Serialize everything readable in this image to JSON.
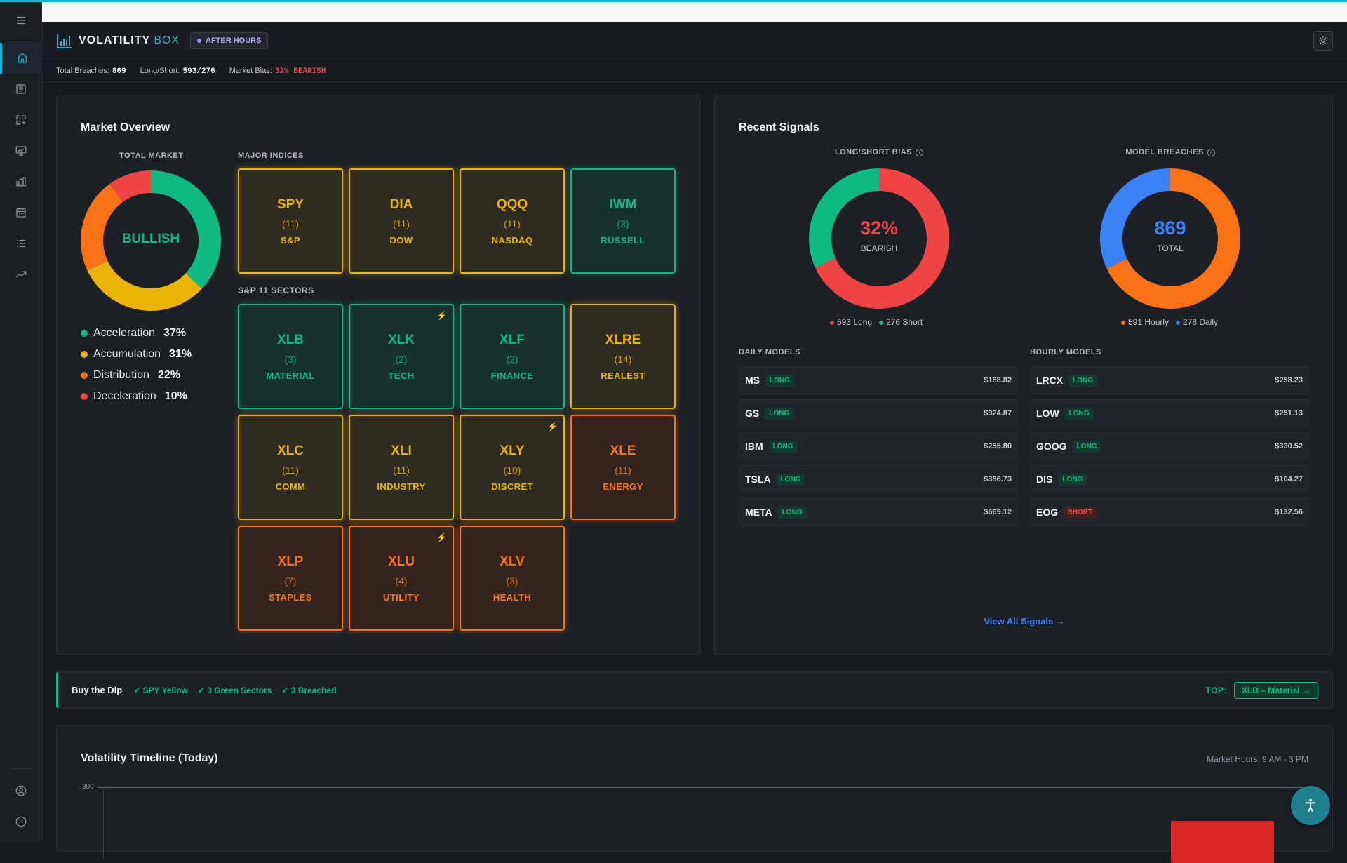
{
  "app": {
    "logo_main": "VOLATILITY",
    "logo_accent": "BOX",
    "status_badge": "AFTER HOURS"
  },
  "stats": {
    "total_breaches_label": "Total Breaches:",
    "total_breaches": "869",
    "long_short_label": "Long/Short:",
    "long_short": "593/276",
    "market_bias_label": "Market Bias:",
    "market_bias": "32% BEARISH"
  },
  "market_overview": {
    "title": "Market Overview",
    "total_market_label": "TOTAL MARKET",
    "total_market_state": "BULLISH",
    "phases": [
      {
        "label": "Acceleration",
        "pct": "37%",
        "value": 37,
        "color": "#10b981"
      },
      {
        "label": "Accumulation",
        "pct": "31%",
        "value": 31,
        "color": "#eab308"
      },
      {
        "label": "Distribution",
        "pct": "22%",
        "value": 22,
        "color": "#f97316"
      },
      {
        "label": "Deceleration",
        "pct": "10%",
        "value": 10,
        "color": "#ef4444"
      }
    ],
    "major_indices_label": "MAJOR INDICES",
    "major_indices": [
      {
        "symbol": "SPY",
        "count": "(11)",
        "name": "S&P",
        "status": "yellow"
      },
      {
        "symbol": "DIA",
        "count": "(11)",
        "name": "DOW",
        "status": "yellow"
      },
      {
        "symbol": "QQQ",
        "count": "(11)",
        "name": "NASDAQ",
        "status": "yellow"
      },
      {
        "symbol": "IWM",
        "count": "(3)",
        "name": "RUSSELL",
        "status": "green"
      }
    ],
    "sectors_label": "S&P 11 SECTORS",
    "sectors": [
      {
        "symbol": "XLB",
        "count": "(3)",
        "name": "MATERIAL",
        "status": "green",
        "bolt": false
      },
      {
        "symbol": "XLK",
        "count": "(2)",
        "name": "TECH",
        "status": "green",
        "bolt": true
      },
      {
        "symbol": "XLF",
        "count": "(2)",
        "name": "FINANCE",
        "status": "green",
        "bolt": false
      },
      {
        "symbol": "XLRE",
        "count": "(14)",
        "name": "REALEST",
        "status": "yellow",
        "bolt": false
      },
      {
        "symbol": "XLC",
        "count": "(11)",
        "name": "COMM",
        "status": "yellow",
        "bolt": false
      },
      {
        "symbol": "XLI",
        "count": "(11)",
        "name": "INDUSTRY",
        "status": "yellow",
        "bolt": false
      },
      {
        "symbol": "XLY",
        "count": "(10)",
        "name": "DISCRET",
        "status": "yellow",
        "bolt": true
      },
      {
        "symbol": "XLE",
        "count": "(11)",
        "name": "ENERGY",
        "status": "orange",
        "bolt": false
      },
      {
        "symbol": "XLP",
        "count": "(7)",
        "name": "STAPLES",
        "status": "orange",
        "bolt": false
      },
      {
        "symbol": "XLU",
        "count": "(4)",
        "name": "UTILITY",
        "status": "orange",
        "bolt": true
      },
      {
        "symbol": "XLV",
        "count": "(3)",
        "name": "HEALTH",
        "status": "orange",
        "bolt": false
      }
    ]
  },
  "recent_signals": {
    "title": "Recent Signals",
    "bias": {
      "label": "LONG/SHORT BIAS",
      "pct": "32%",
      "state": "BEARISH",
      "long_label": "593 Long",
      "short_label": "276 Short",
      "long": 593,
      "short": 276
    },
    "breaches": {
      "label": "MODEL BREACHES",
      "total": "869",
      "total_label": "TOTAL",
      "hourly_label": "591 Hourly",
      "daily_label": "278 Daily",
      "hourly": 591,
      "daily": 278
    },
    "daily_models_label": "DAILY MODELS",
    "hourly_models_label": "HOURLY MODELS",
    "daily_models": [
      {
        "ticker": "MS",
        "side": "LONG",
        "price": "$188.82"
      },
      {
        "ticker": "GS",
        "side": "LONG",
        "price": "$924.87"
      },
      {
        "ticker": "IBM",
        "side": "LONG",
        "price": "$255.80"
      },
      {
        "ticker": "TSLA",
        "side": "LONG",
        "price": "$386.73"
      },
      {
        "ticker": "META",
        "side": "LONG",
        "price": "$669.12"
      }
    ],
    "hourly_models": [
      {
        "ticker": "LRCX",
        "side": "LONG",
        "price": "$258.23"
      },
      {
        "ticker": "LOW",
        "side": "LONG",
        "price": "$251.13"
      },
      {
        "ticker": "GOOG",
        "side": "LONG",
        "price": "$330.52"
      },
      {
        "ticker": "DIS",
        "side": "LONG",
        "price": "$104.27"
      },
      {
        "ticker": "EOG",
        "side": "SHORT",
        "price": "$132.56"
      }
    ],
    "view_all": "View All Signals →"
  },
  "buy_the_dip": {
    "title": "Buy the Dip",
    "checks": [
      "✓ SPY Yellow",
      "✓ 3 Green Sectors",
      "✓ 3 Breached"
    ],
    "top_label": "TOP:",
    "top_button": "XLB – Material →"
  },
  "timeline": {
    "title": "Volatility Timeline (Today)",
    "market_hours": "Market Hours: 9 AM - 3 PM",
    "y_tick": "300"
  },
  "colors": {
    "accent": "#14b8d4",
    "green": "#10b981",
    "yellow": "#eab308",
    "orange": "#f97316",
    "red": "#ef4444",
    "blue": "#3b82f6"
  },
  "sidebar_icons": [
    "menu-icon",
    "home-icon",
    "news-icon",
    "grid-icon",
    "presentation-chart-icon",
    "bar-chart-icon",
    "calendar-icon",
    "list-icon",
    "trending-up-icon",
    "user-circle-icon",
    "help-circle-icon"
  ]
}
